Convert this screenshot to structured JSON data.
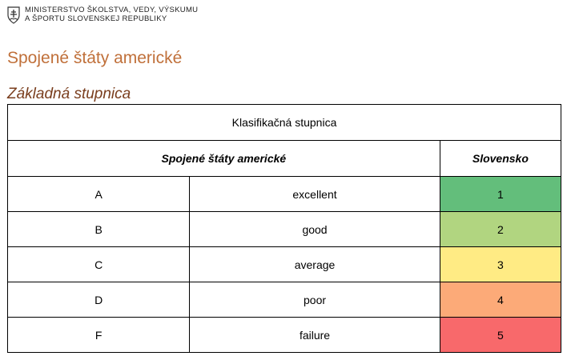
{
  "header": {
    "ministry_line1": "MINISTERSTVO ŠKOLSTVA, VEDY, VÝSKUMU",
    "ministry_line2": "A ŠPORTU SLOVENSKEJ REPUBLIKY",
    "crest_icon": "coat-of-arms-icon"
  },
  "page_title": "Spojené štáty americké",
  "section_title": "Základná stupnica",
  "table": {
    "caption": "Klasifikačná stupnica",
    "col_us": "Spojené štáty americké",
    "col_sk": "Slovensko",
    "rows": [
      {
        "letter": "A",
        "label": "excellent",
        "grade": "1",
        "color": "#63be7b"
      },
      {
        "letter": "B",
        "label": "good",
        "grade": "2",
        "color": "#b1d580"
      },
      {
        "letter": "C",
        "label": "average",
        "grade": "3",
        "color": "#ffeb84"
      },
      {
        "letter": "D",
        "label": "poor",
        "grade": "4",
        "color": "#fcaa78"
      },
      {
        "letter": "F",
        "label": "failure",
        "grade": "5",
        "color": "#f8696b"
      }
    ]
  }
}
